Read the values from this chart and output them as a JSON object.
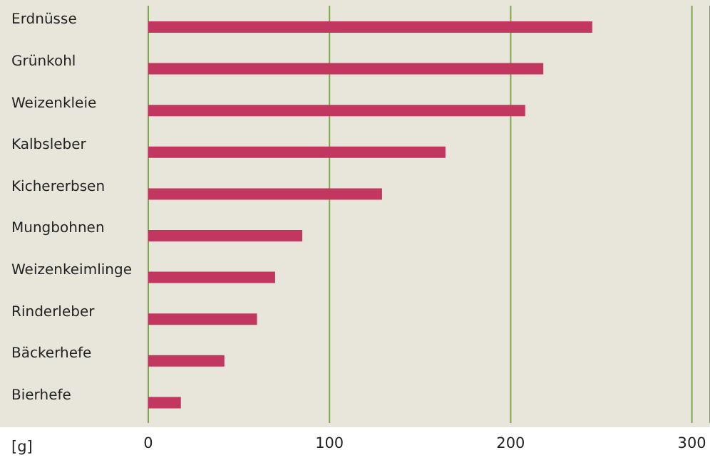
{
  "chart_data": {
    "type": "bar",
    "orientation": "horizontal",
    "xlabel": "[g]",
    "categories": [
      "Erdnüsse",
      "Grünkohl",
      "Weizenkleie",
      "Kalbsleber",
      "Kichererbsen",
      "Mungbohnen",
      "Weizenkeimlinge",
      "Rinderleber",
      "Bäckerhefe",
      "Bierhefe"
    ],
    "values": [
      245,
      218,
      208,
      164,
      129,
      85,
      70,
      60,
      42,
      18
    ],
    "color": "#c2375f",
    "xlim": [
      0,
      310
    ],
    "xticks": [
      0,
      100,
      200,
      300
    ],
    "grid": "x"
  }
}
